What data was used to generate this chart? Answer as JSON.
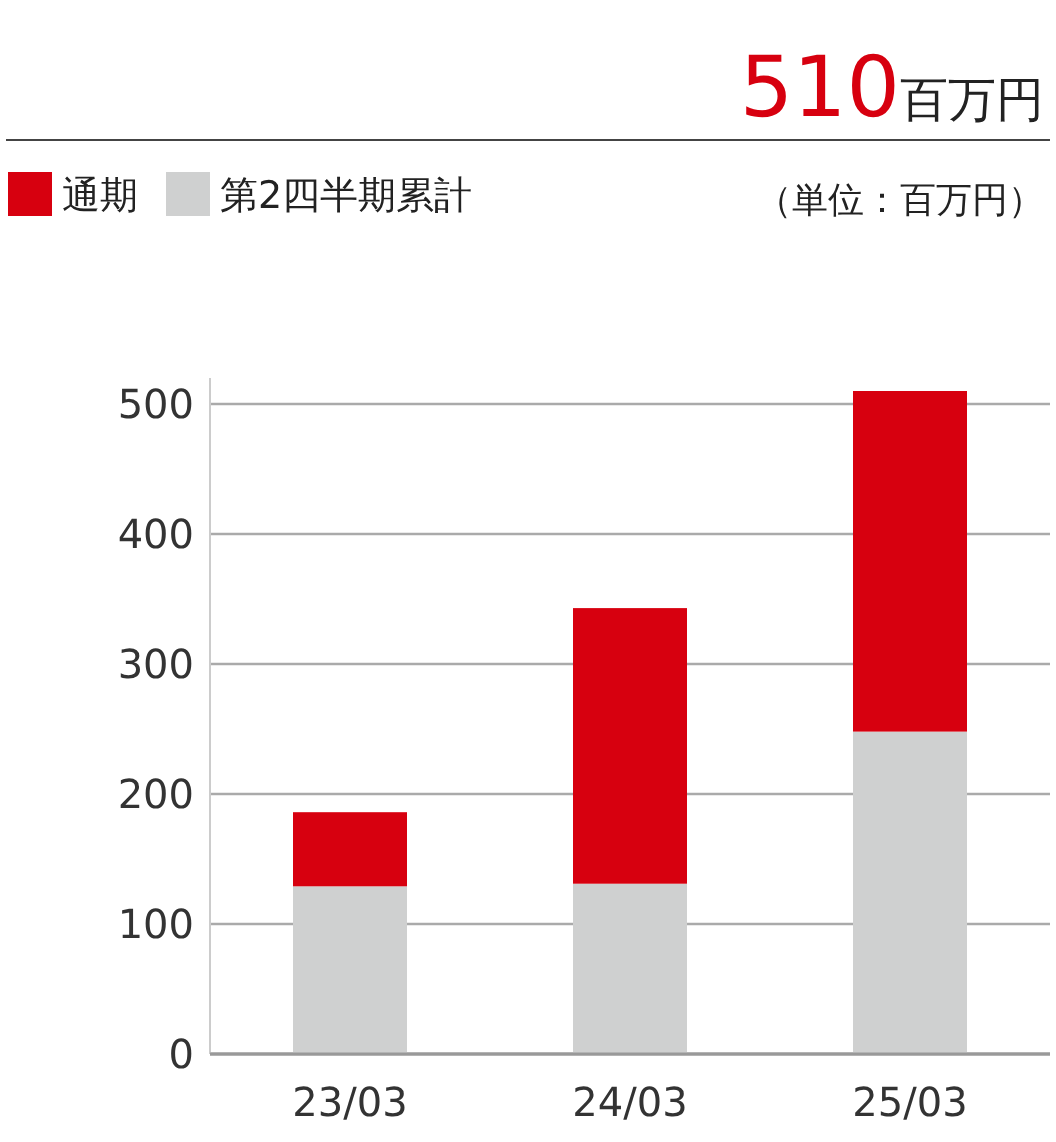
{
  "chart_data": {
    "type": "bar",
    "title": "510",
    "subtitle": "百万円",
    "annotations": [
      "（単位：百万円）"
    ],
    "categories": [
      "23/03",
      "24/03",
      "25/03"
    ],
    "series": [
      {
        "name": "第2四半期累計",
        "color": "#cfd0d0",
        "values": [
          129,
          131,
          248
        ]
      },
      {
        "name": "通期",
        "color": "#d7000f",
        "values": [
          57,
          212,
          262
        ]
      }
    ],
    "stacked": true,
    "ylim": [
      0,
      520
    ],
    "yticks": [
      0,
      100,
      200,
      300,
      400,
      500
    ],
    "grid": "y",
    "legend": "top left"
  }
}
